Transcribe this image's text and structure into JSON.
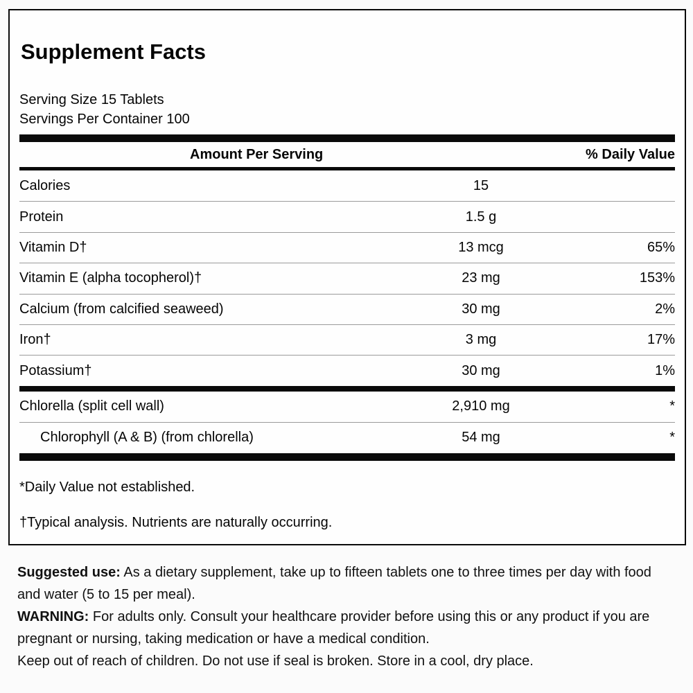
{
  "label": {
    "title": "Supplement Facts",
    "serving_size": "Serving Size 15 Tablets",
    "servings_per_container": "Servings Per Container 100",
    "columns": {
      "amount": "Amount Per Serving",
      "daily_value": "% Daily Value"
    },
    "rows": [
      {
        "name": "Calories",
        "amount": "15",
        "dv": ""
      },
      {
        "name": "Protein",
        "amount": "1.5 g",
        "dv": ""
      },
      {
        "name": "Vitamin D†",
        "amount": "13 mcg",
        "dv": "65%"
      },
      {
        "name": "Vitamin E (alpha tocopherol)†",
        "amount": "23 mg",
        "dv": "153%"
      },
      {
        "name": "Calcium (from calcified seaweed)",
        "amount": "30 mg",
        "dv": "2%"
      },
      {
        "name": "Iron†",
        "amount": "3 mg",
        "dv": "17%"
      },
      {
        "name": "Potassium†",
        "amount": "30 mg",
        "dv": "1%"
      },
      {
        "name": "Chlorella (split cell wall)",
        "amount": "2,910 mg",
        "dv": "*"
      },
      {
        "name": "Chlorophyll (A & B) (from chlorella)",
        "amount": "54 mg",
        "dv": "*"
      }
    ],
    "footnotes": {
      "daily_value": "*Daily Value not established.",
      "typical_analysis": "†Typical analysis. Nutrients are naturally occurring."
    }
  },
  "info": {
    "suggested_use_label": "Suggested use:",
    "suggested_use_text": " As a dietary supplement, take up to fifteen tablets one to three times per day with food and water (5 to 15 per meal).",
    "warning_label": "WARNING:",
    "warning_text": " For adults only. Consult your healthcare provider before using this or any product if you are pregnant or nursing, taking medication or have a medical condition.",
    "storage_text": "Keep out of reach of children. Do not use if seal is broken. Store in a cool, dry place."
  },
  "colors": {
    "text": "#050505",
    "bar": "#0a0a0a",
    "separator": "#9a9a9a",
    "background": "#fbfbfb"
  }
}
